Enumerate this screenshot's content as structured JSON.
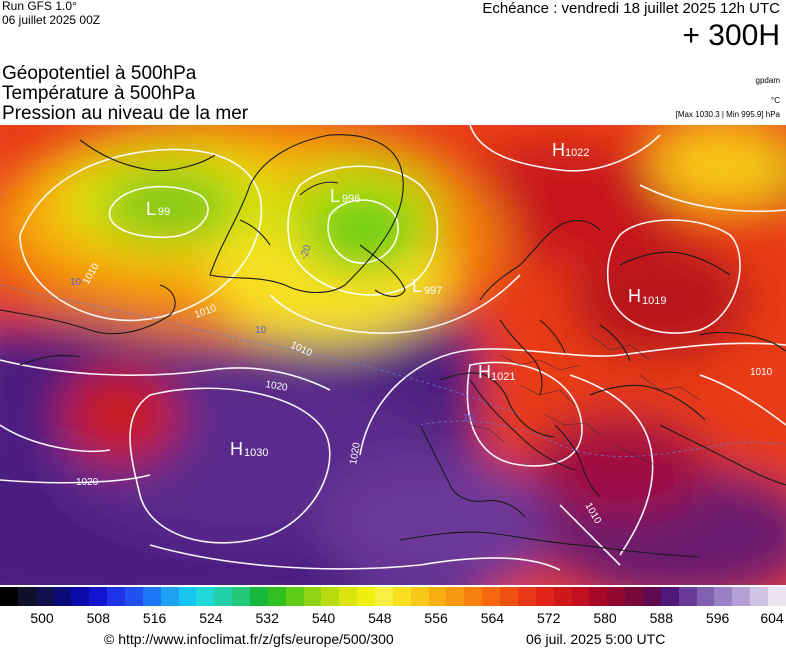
{
  "header": {
    "run": "Run GFS 1.0°",
    "run_date": "06 juillet 2025 00Z",
    "valid": "Echéance : vendredi 18 juillet 2025 12h UTC",
    "lead": "+ 300H"
  },
  "fields": [
    "Géopotentiel à 500hPa",
    "Température à 500hPa",
    "Pression au niveau de la mer"
  ],
  "units": {
    "gpdam": "gpdam",
    "temp": "°C",
    "pressure": "[Max 1030.3 | Min 995.9] hPa"
  },
  "map": {
    "pressure_centers": [
      {
        "type": "H",
        "value": "1022"
      },
      {
        "type": "L",
        "value": "996"
      },
      {
        "type": "L",
        "value": "99"
      },
      {
        "type": "L",
        "value": "997"
      },
      {
        "type": "H",
        "value": "1019"
      },
      {
        "type": "H",
        "value": "1021"
      },
      {
        "type": "H",
        "value": "1030"
      }
    ],
    "isobar_labels": [
      "1010",
      "1010",
      "1020",
      "1020",
      "1020",
      "1010",
      "1010",
      "1010"
    ],
    "temp_labels": [
      "10",
      "10",
      "10",
      "-20"
    ]
  },
  "colorbar": {
    "colors": [
      "#000000",
      "#10102a",
      "#10104a",
      "#0a0a78",
      "#0a0aa8",
      "#1414d0",
      "#1e32e8",
      "#2050f0",
      "#1e78f5",
      "#1ea0f5",
      "#18c4f0",
      "#20d8d8",
      "#20d0a8",
      "#20c878",
      "#18b83c",
      "#30c020",
      "#60cc18",
      "#90d414",
      "#b8dc10",
      "#dce410",
      "#f0f010",
      "#f8f040",
      "#f8e020",
      "#f8c818",
      "#f8b010",
      "#f89810",
      "#f88010",
      "#f86810",
      "#f05010",
      "#e83818",
      "#e02418",
      "#d01818",
      "#c01020",
      "#a80828",
      "#900830",
      "#780838",
      "#600850",
      "#50187a",
      "#6a3c9a",
      "#8060b0",
      "#9a80c4",
      "#b4a0d4",
      "#d0c4e4",
      "#eae4f0"
    ],
    "ticks": [
      "500",
      "508",
      "516",
      "524",
      "532",
      "540",
      "548",
      "556",
      "564",
      "572",
      "580",
      "588",
      "596",
      "604"
    ]
  },
  "footer": {
    "credit": "© http://www.infoclimat.fr/z/gfs/europe/500/300",
    "generated": "06 juil. 2025  5:00 UTC"
  }
}
